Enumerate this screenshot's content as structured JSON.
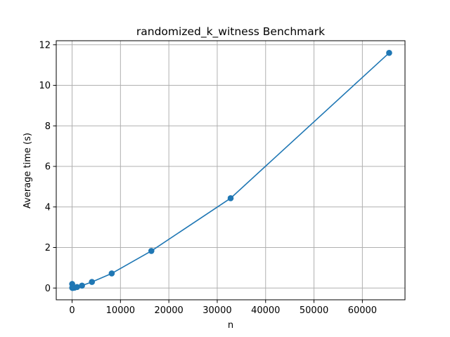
{
  "chart_data": {
    "type": "line",
    "title": "randomized_k_witness Benchmark",
    "xlabel": "n",
    "ylabel": "Average time (s)",
    "xlim": [
      -3275,
      68812
    ],
    "ylim": [
      -0.58,
      12.2
    ],
    "xticks": [
      0,
      10000,
      20000,
      30000,
      40000,
      50000,
      60000
    ],
    "xtick_labels": [
      "0",
      "10000",
      "20000",
      "30000",
      "40000",
      "50000",
      "60000"
    ],
    "yticks": [
      0,
      2,
      4,
      6,
      8,
      10,
      12
    ],
    "ytick_labels": [
      "0",
      "2",
      "4",
      "6",
      "8",
      "10",
      "12"
    ],
    "grid": true,
    "markers": true,
    "series": [
      {
        "color": "#1f77b4",
        "x": [
          16,
          32,
          64,
          128,
          256,
          512,
          1024,
          2048,
          4096,
          8192,
          16384,
          32768,
          65536
        ],
        "y": [
          0.2,
          0.01,
          0.01,
          0.01,
          0.01,
          0.02,
          0.05,
          0.12,
          0.3,
          0.72,
          1.83,
          4.43,
          11.6
        ]
      }
    ]
  },
  "colors": {
    "series": "#1f77b4",
    "grid": "#b0b0b0",
    "axes": "#000000",
    "background": "#ffffff"
  }
}
